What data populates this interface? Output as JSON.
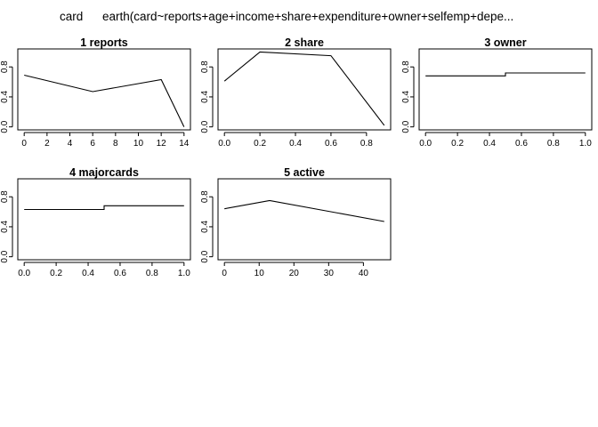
{
  "header": {
    "response": "card",
    "model": "earth(card~reports+age+income+share+expenditure+owner+selfemp+depe..."
  },
  "chart_data": [
    {
      "type": "line",
      "title": "1  reports",
      "xlim": [
        0,
        14
      ],
      "ylim": [
        0,
        1
      ],
      "xticks": [
        0,
        2,
        4,
        6,
        8,
        10,
        12,
        14
      ],
      "xtick_labels": [
        "0",
        "2",
        "4",
        "6",
        "8",
        "10",
        "12",
        "14"
      ],
      "yticks": [
        0,
        0.4,
        0.8
      ],
      "ytick_labels": [
        "0.0",
        "0.4",
        "0.8"
      ],
      "x": [
        0,
        6,
        12,
        14
      ],
      "y": [
        0.69,
        0.47,
        0.63,
        0.0
      ]
    },
    {
      "type": "line",
      "title": "2  share",
      "xlim": [
        0,
        0.9
      ],
      "ylim": [
        0,
        1
      ],
      "xticks": [
        0,
        0.2,
        0.4,
        0.6,
        0.8
      ],
      "xtick_labels": [
        "0.0",
        "0.2",
        "0.4",
        "0.6",
        "0.8"
      ],
      "yticks": [
        0,
        0.4,
        0.8
      ],
      "ytick_labels": [
        "0.0",
        "0.4",
        "0.8"
      ],
      "x": [
        0,
        0.2,
        0.6,
        0.9
      ],
      "y": [
        0.61,
        1.0,
        0.95,
        0.02
      ]
    },
    {
      "type": "line",
      "title": "3  owner",
      "xlim": [
        0,
        1
      ],
      "ylim": [
        0,
        1
      ],
      "xticks": [
        0,
        0.2,
        0.4,
        0.6,
        0.8,
        1.0
      ],
      "xtick_labels": [
        "0.0",
        "0.2",
        "0.4",
        "0.6",
        "0.8",
        "1.0"
      ],
      "yticks": [
        0,
        0.4,
        0.8
      ],
      "ytick_labels": [
        "0.0",
        "0.4",
        "0.8"
      ],
      "x": [
        0,
        0.5,
        0.5,
        1.0
      ],
      "y": [
        0.68,
        0.68,
        0.72,
        0.72
      ]
    },
    {
      "type": "line",
      "title": "4  majorcards",
      "xlim": [
        0,
        1
      ],
      "ylim": [
        0,
        1
      ],
      "xticks": [
        0,
        0.2,
        0.4,
        0.6,
        0.8,
        1.0
      ],
      "xtick_labels": [
        "0.0",
        "0.2",
        "0.4",
        "0.6",
        "0.8",
        "1.0"
      ],
      "yticks": [
        0,
        0.4,
        0.8
      ],
      "ytick_labels": [
        "0.0",
        "0.4",
        "0.8"
      ],
      "x": [
        0,
        0.5,
        0.5,
        1.0
      ],
      "y": [
        0.63,
        0.63,
        0.68,
        0.68
      ]
    },
    {
      "type": "line",
      "title": "5  active",
      "xlim": [
        0,
        46
      ],
      "ylim": [
        0,
        1
      ],
      "xticks": [
        0,
        10,
        20,
        30,
        40
      ],
      "xtick_labels": [
        "0",
        "10",
        "20",
        "30",
        "40"
      ],
      "yticks": [
        0,
        0.4,
        0.8
      ],
      "ytick_labels": [
        "0.0",
        "0.4",
        "0.8"
      ],
      "x": [
        0,
        13,
        46
      ],
      "y": [
        0.64,
        0.75,
        0.47
      ]
    }
  ]
}
